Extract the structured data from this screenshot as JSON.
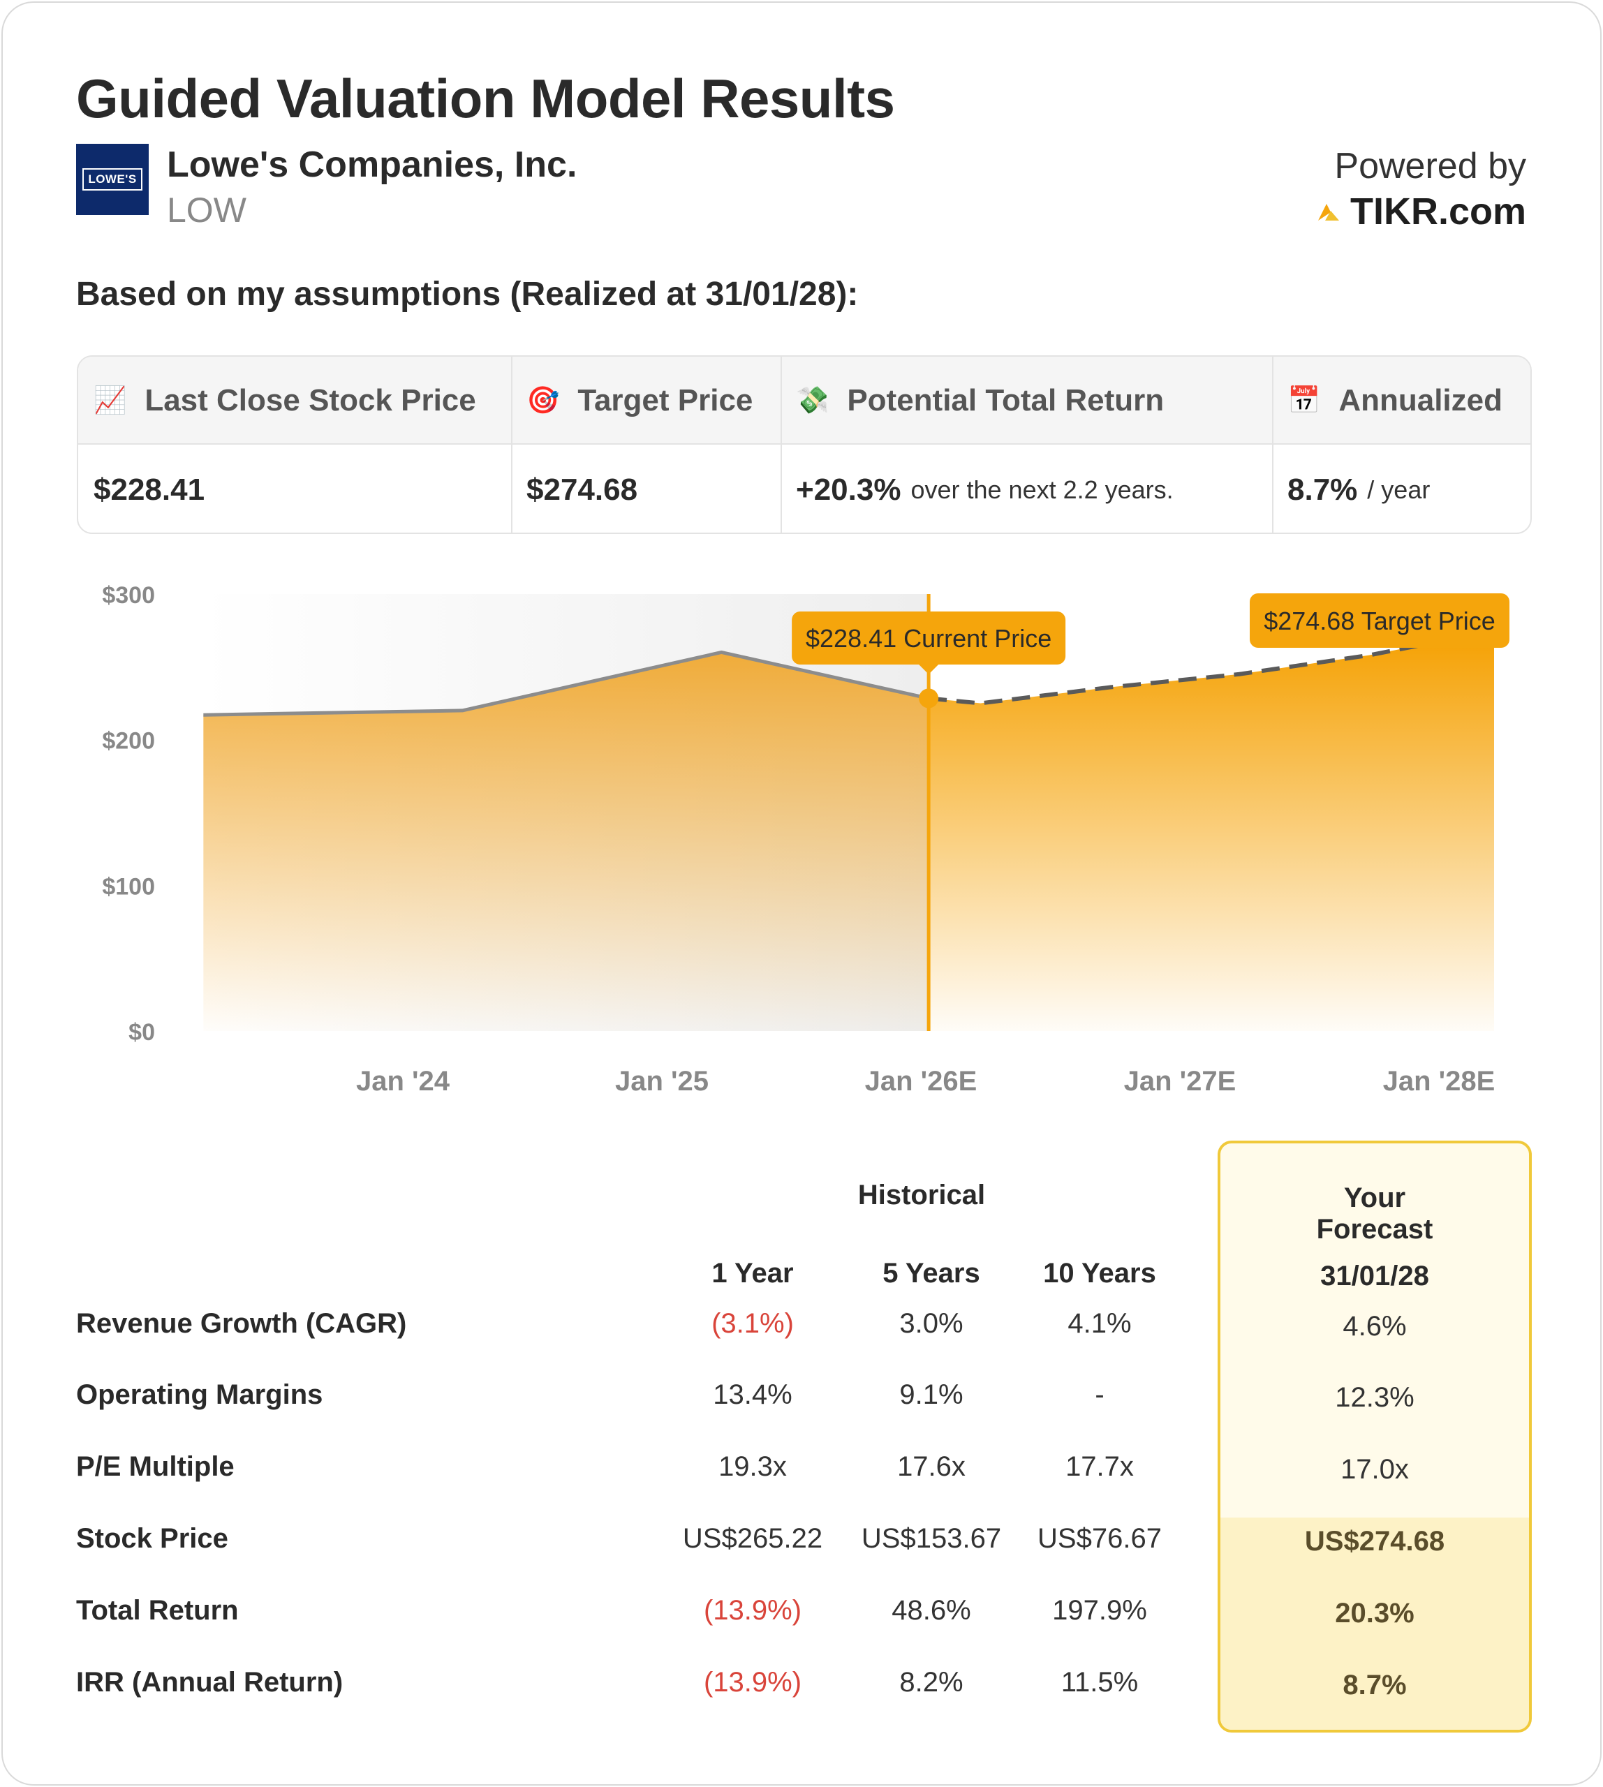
{
  "title": "Guided Valuation Model Results",
  "company": {
    "name": "Lowe's Companies, Inc.",
    "ticker": "LOW",
    "logo_text": "LOWE'S"
  },
  "branding": {
    "powered_by": "Powered by",
    "site": "TIKR.com"
  },
  "subtitle": "Based on my assumptions (Realized at 31/01/28):",
  "summary": {
    "headers": [
      {
        "icon": "📈",
        "label": "Last Close Stock Price"
      },
      {
        "icon": "🎯",
        "label": "Target Price"
      },
      {
        "icon": "💸",
        "label": "Potential Total Return"
      },
      {
        "icon": "📅",
        "label": "Annualized"
      }
    ],
    "values": [
      {
        "main": "$228.41",
        "sub": ""
      },
      {
        "main": "$274.68",
        "sub": ""
      },
      {
        "main": "+20.3%",
        "sub": "over the next 2.2 years."
      },
      {
        "main": "8.7%",
        "sub": "/ year"
      }
    ]
  },
  "chart_data": {
    "type": "area",
    "y_ticks": [
      "$300",
      "$200",
      "$100",
      "$0"
    ],
    "ylim": [
      0,
      300
    ],
    "x_tick_labels": [
      "Jan '24",
      "Jan '25",
      "Jan '26E",
      "Jan '27E",
      "Jan '28E"
    ],
    "historical": {
      "x": [
        -0.77,
        0.23,
        1.23,
        2.03
      ],
      "y": [
        217,
        220,
        260,
        228.41
      ]
    },
    "forecast": {
      "x": [
        2.03,
        2.23,
        2.73,
        3.23,
        3.73,
        4.23
      ],
      "y": [
        228.41,
        225,
        236,
        245,
        258,
        274.68
      ]
    },
    "current_price": {
      "x": 2.03,
      "value": 228.41,
      "label": "$228.41 Current Price"
    },
    "target_price": {
      "x": 4.23,
      "value": 274.68,
      "label": "$274.68 Target Price"
    },
    "colors": {
      "accent": "#f5a50c",
      "historical_line": "#8c8c8c",
      "forecast_line": "#5a5a5a"
    }
  },
  "table": {
    "group_historical": "Historical",
    "group_forecast": "Your Forecast",
    "columns": [
      "1 Year",
      "5 Years",
      "10 Years",
      "31/01/28"
    ],
    "rows": [
      {
        "label": "Revenue Growth (CAGR)",
        "values": [
          "(3.1%)",
          "3.0%",
          "4.1%",
          "4.6%"
        ]
      },
      {
        "label": "Operating Margins",
        "values": [
          "13.4%",
          "9.1%",
          "-",
          "12.3%"
        ]
      },
      {
        "label": "P/E Multiple",
        "values": [
          "19.3x",
          "17.6x",
          "17.7x",
          "17.0x"
        ]
      },
      {
        "label": "Stock Price",
        "values": [
          "US$265.22",
          "US$153.67",
          "US$76.67",
          "US$274.68"
        ]
      },
      {
        "label": "Total Return",
        "values": [
          "(13.9%)",
          "48.6%",
          "197.9%",
          "20.3%"
        ]
      },
      {
        "label": "IRR (Annual Return)",
        "values": [
          "(13.9%)",
          "8.2%",
          "11.5%",
          "8.7%"
        ]
      }
    ]
  }
}
